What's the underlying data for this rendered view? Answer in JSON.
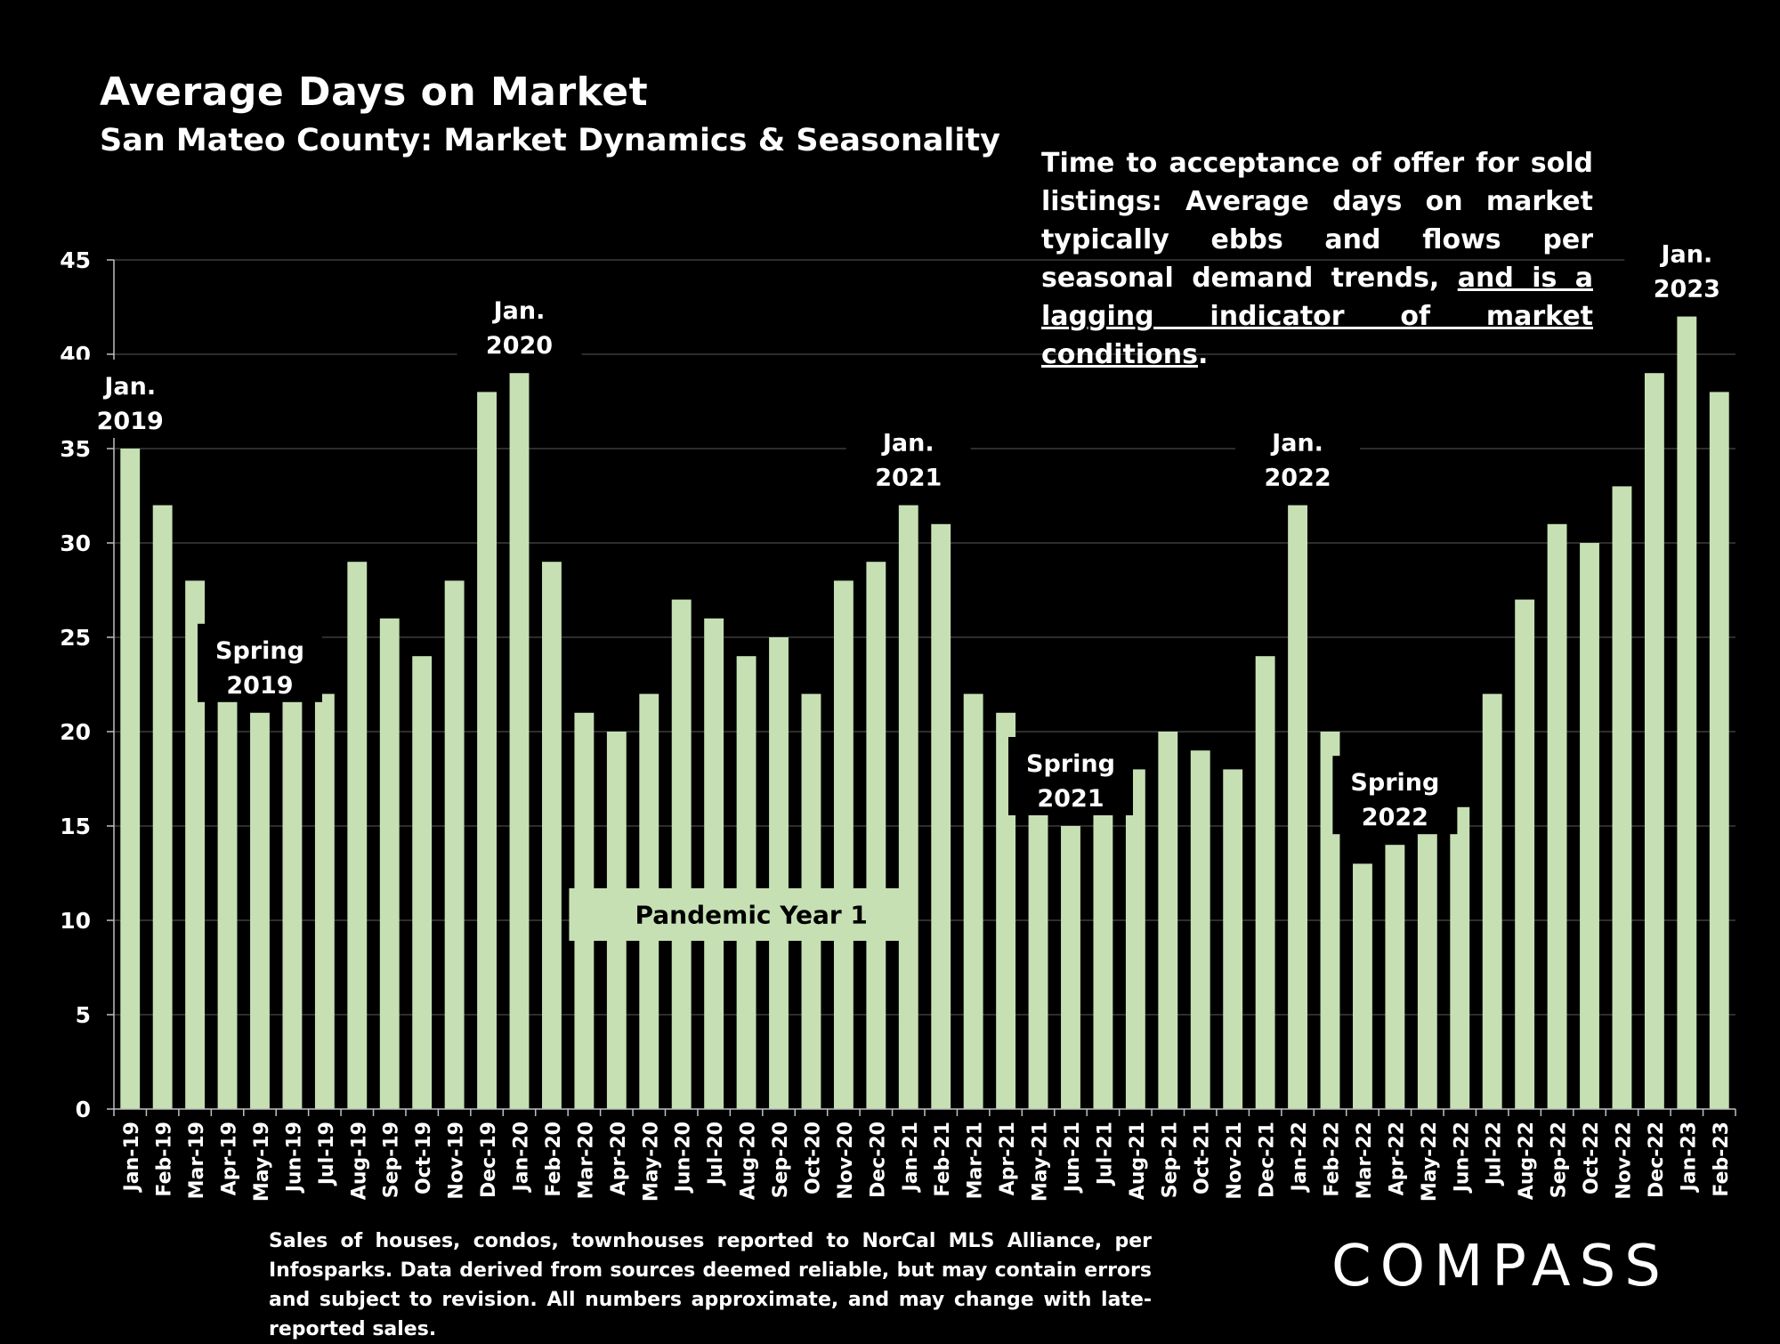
{
  "chart_data": {
    "type": "bar",
    "title": "Average Days on Market",
    "subtitle": "San Mateo County: Market Dynamics & Seasonality",
    "xlabel": "",
    "ylabel": "",
    "ylim": [
      0,
      45
    ],
    "yticks": [
      0,
      5,
      10,
      15,
      20,
      25,
      30,
      35,
      40,
      45
    ],
    "grid": true,
    "bar_color": "#c6e0b4",
    "categories": [
      "Jan-19",
      "Feb-19",
      "Mar-19",
      "Apr-19",
      "May-19",
      "Jun-19",
      "Jul-19",
      "Aug-19",
      "Sep-19",
      "Oct-19",
      "Nov-19",
      "Dec-19",
      "Jan-20",
      "Feb-20",
      "Mar-20",
      "Apr-20",
      "May-20",
      "Jun-20",
      "Jul-20",
      "Aug-20",
      "Sep-20",
      "Oct-20",
      "Nov-20",
      "Dec-20",
      "Jan-21",
      "Feb-21",
      "Mar-21",
      "Apr-21",
      "May-21",
      "Jun-21",
      "Jul-21",
      "Aug-21",
      "Sep-21",
      "Oct-21",
      "Nov-21",
      "Dec-21",
      "Jan-22",
      "Feb-22",
      "Mar-22",
      "Apr-22",
      "May-22",
      "Jun-22",
      "Jul-22",
      "Aug-22",
      "Sep-22",
      "Oct-22",
      "Nov-22",
      "Dec-22",
      "Jan-23",
      "Feb-23"
    ],
    "values": [
      35,
      32,
      28,
      22,
      21,
      25,
      22,
      29,
      26,
      24,
      28,
      38,
      39,
      29,
      21,
      20,
      22,
      27,
      26,
      24,
      25,
      22,
      28,
      29,
      32,
      31,
      22,
      21,
      19,
      15,
      18,
      18,
      20,
      19,
      18,
      24,
      32,
      20,
      13,
      14,
      16,
      16,
      22,
      27,
      31,
      30,
      33,
      39,
      42,
      38
    ],
    "annotations": [
      {
        "lines": [
          "Jan.",
          "2019"
        ],
        "category": "Jan-19"
      },
      {
        "lines": [
          "Spring",
          "2019"
        ],
        "category": "May-19"
      },
      {
        "lines": [
          "Jan.",
          "2020"
        ],
        "category": "Jan-20"
      },
      {
        "lines": [
          "Jan.",
          "2021"
        ],
        "category": "Jan-21"
      },
      {
        "lines": [
          "Spring",
          "2021"
        ],
        "category": "Jun-21"
      },
      {
        "lines": [
          "Jan.",
          "2022"
        ],
        "category": "Jan-22"
      },
      {
        "lines": [
          "Spring",
          "2022"
        ],
        "category": "Apr-22"
      },
      {
        "lines": [
          "Jan.",
          "2023"
        ],
        "category": "Jan-23"
      }
    ],
    "callout": {
      "text": "Pandemic Year 1",
      "from": "Mar-20",
      "to": "Feb-21"
    }
  },
  "note": {
    "part1": "Time to acceptance of offer for sold listings: Average days on market typically ebbs and flows per seasonal demand trends, ",
    "underlined": "and is a lagging indicator of market conditions",
    "end": "."
  },
  "footer": "Sales of houses, condos, townhouses reported to NorCal MLS Alliance, per Infosparks. Data derived from sources deemed reliable, but may contain errors and subject to revision. All numbers approximate, and may change with late-reported sales.",
  "logo": "COMPASS"
}
